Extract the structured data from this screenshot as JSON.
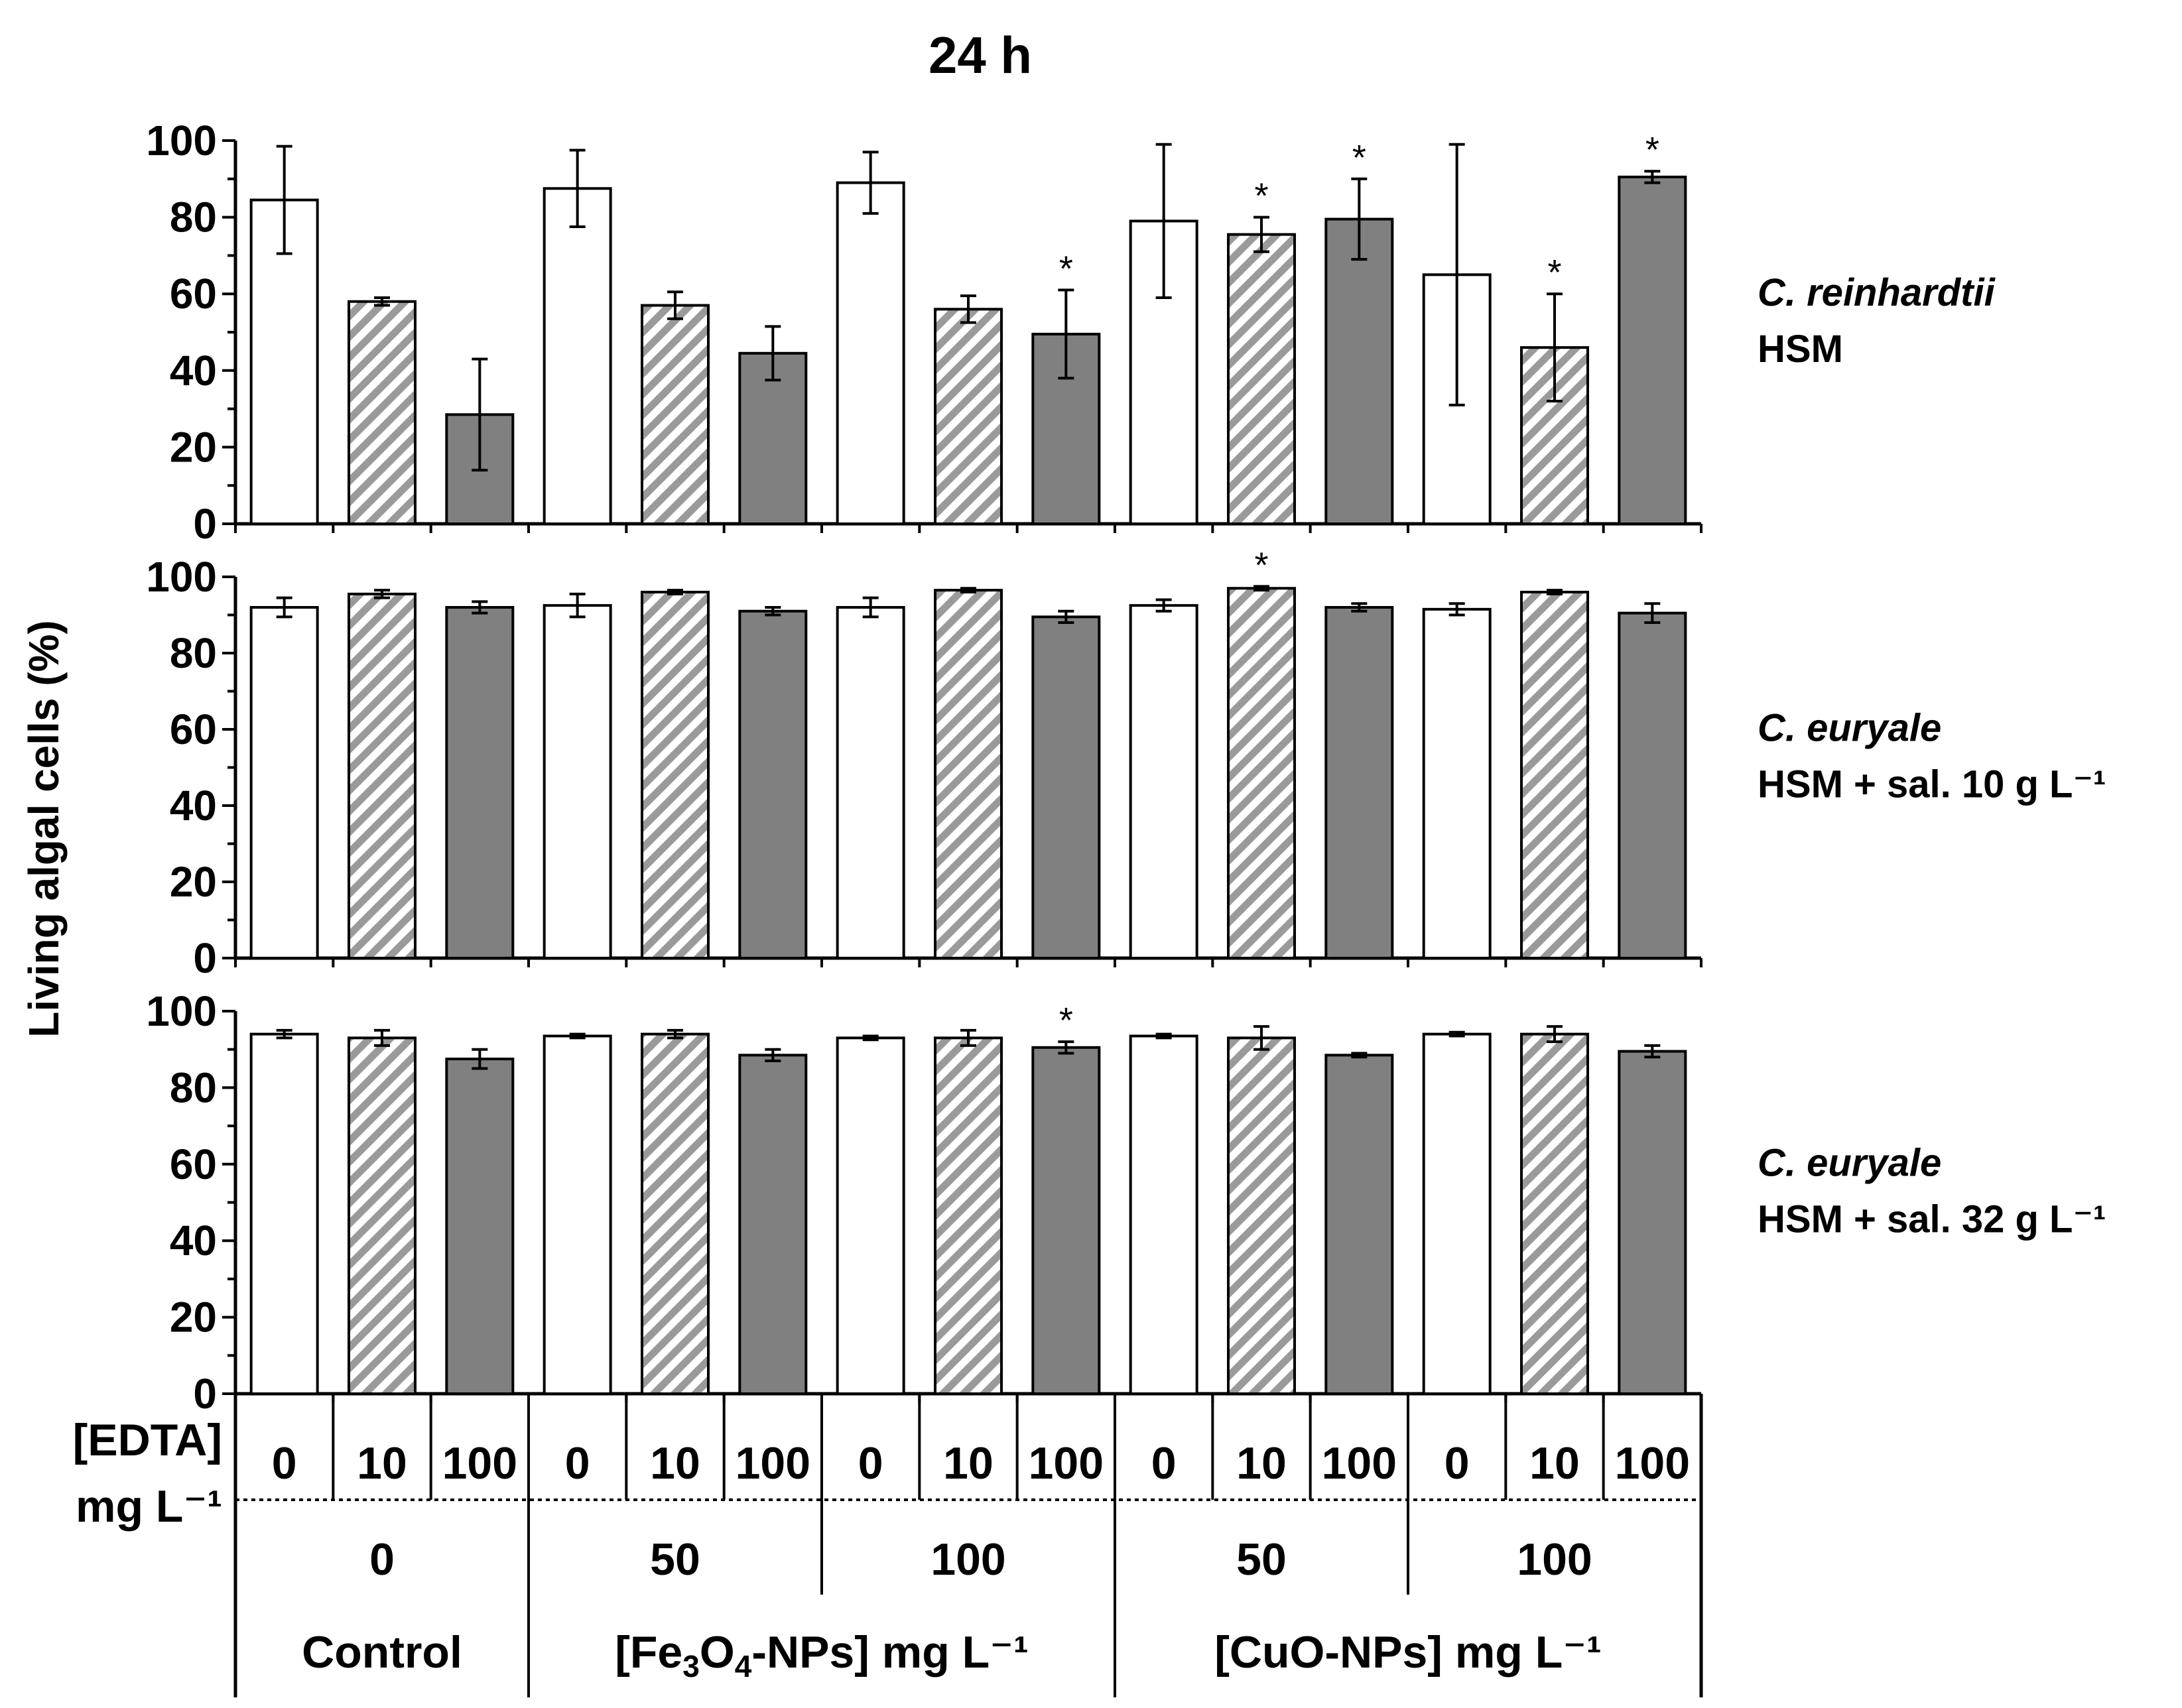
{
  "chart_data": {
    "type": "bar",
    "title": "24 h",
    "ylabel": "Living algal cells (%)",
    "ylim": [
      0,
      100
    ],
    "yticks": [
      0,
      20,
      40,
      60,
      80,
      100
    ],
    "edta_label": "[EDTA]",
    "edta_unit": "mg L⁻¹",
    "edta_levels": [
      "0",
      "10",
      "100",
      "0",
      "10",
      "100",
      "0",
      "10",
      "100",
      "0",
      "10",
      "100",
      "0",
      "10",
      "100"
    ],
    "np_concentrations": [
      "0",
      "50",
      "100",
      "50",
      "100"
    ],
    "treatment_groups": [
      {
        "name": "Control",
        "parts": [
          "Control"
        ]
      },
      {
        "name": "[Fe3O4-NPs] mg L⁻¹",
        "parts": [
          "[Fe",
          "3",
          "O",
          "4",
          "-NPs] mg L⁻¹"
        ]
      },
      {
        "name": "[CuO-NPs] mg L⁻¹",
        "parts": [
          "[CuO-NPs] mg L⁻¹"
        ]
      }
    ],
    "bar_styles": {
      "edta_0": "#ffffff",
      "edta_10": "#9a9a9a",
      "edta_100": "#808080",
      "stroke": "#000000"
    },
    "panels": [
      {
        "species": "C. reinhardtii",
        "medium": "HSM",
        "values": [
          84.5,
          58,
          28.5,
          87.5,
          57,
          44.5,
          89,
          56,
          49.5,
          79,
          75.5,
          79.5,
          65,
          46,
          90.5
        ],
        "errors": [
          14,
          1,
          14.5,
          10,
          3.5,
          7,
          8,
          3.5,
          11.5,
          20,
          4.5,
          10.5,
          34,
          14,
          1.5
        ],
        "significant": [
          false,
          false,
          false,
          false,
          false,
          false,
          false,
          false,
          true,
          false,
          true,
          true,
          false,
          true,
          true
        ],
        "star_label": "*"
      },
      {
        "species": "C. euryale",
        "medium": "HSM + sal. 10 g L⁻¹",
        "values": [
          92,
          95.5,
          92,
          92.5,
          96,
          91,
          92,
          96.5,
          89.5,
          92.5,
          97,
          92,
          91.5,
          96,
          90.5
        ],
        "errors": [
          2.5,
          1,
          1.5,
          3,
          0.5,
          1,
          2.5,
          0.5,
          1.5,
          1.5,
          0.5,
          1,
          1.5,
          0.5,
          2.5
        ],
        "significant": [
          false,
          false,
          false,
          false,
          false,
          false,
          false,
          false,
          false,
          false,
          true,
          false,
          false,
          false,
          false
        ],
        "star_label": "*"
      },
      {
        "species": "C. euryale",
        "medium": "HSM + sal. 32 g L⁻¹",
        "values": [
          94,
          93,
          87.5,
          93.5,
          94,
          88.5,
          93,
          93,
          90.5,
          93.5,
          93,
          88.5,
          94,
          94,
          89.5
        ],
        "errors": [
          1,
          2,
          2.5,
          0.5,
          1,
          1.5,
          0.5,
          2,
          1.5,
          0.5,
          3,
          0.5,
          0.5,
          2,
          1.5
        ],
        "significant": [
          false,
          false,
          false,
          false,
          false,
          false,
          false,
          false,
          true,
          false,
          false,
          false,
          false,
          false,
          false
        ],
        "star_label": "*"
      }
    ]
  }
}
